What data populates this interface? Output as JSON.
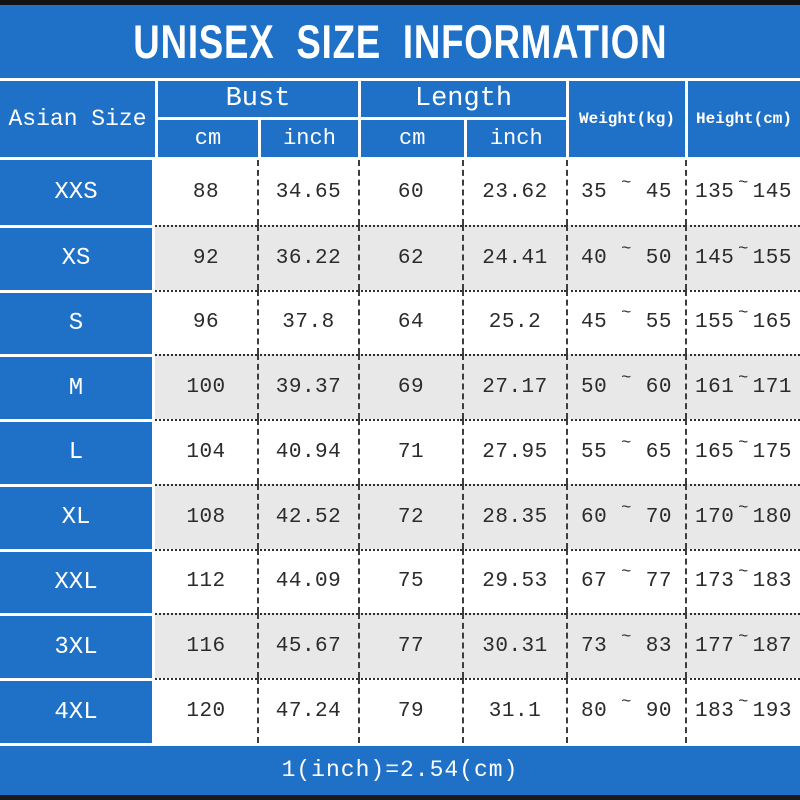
{
  "title": "UNISEX SIZE INFORMATION",
  "note": "1(inch)=2.54(cm)",
  "colors": {
    "accent_blue": "#1e71c6",
    "alt_row_gray": "#e8e8e8",
    "bar_black": "#121212"
  },
  "chart_data": {
    "type": "table",
    "title": "UNISEX SIZE INFORMATION",
    "header": {
      "size_col": "Asian Size",
      "groups": [
        {
          "label": "Bust",
          "sub": [
            "cm",
            "inch"
          ]
        },
        {
          "label": "Length",
          "sub": [
            "cm",
            "inch"
          ]
        }
      ],
      "weight_col": "Weight(kg)",
      "height_col": "Height(cm)"
    },
    "range_separator": "~",
    "columns": [
      "Asian Size",
      "Bust cm",
      "Bust inch",
      "Length cm",
      "Length inch",
      "Weight min (kg)",
      "Weight max (kg)",
      "Height min (cm)",
      "Height max (cm)"
    ],
    "rows": [
      [
        "XXS",
        "88",
        "34.65",
        "60",
        "23.62",
        "35",
        "45",
        "135",
        "145"
      ],
      [
        "XS",
        "92",
        "36.22",
        "62",
        "24.41",
        "40",
        "50",
        "145",
        "155"
      ],
      [
        "S",
        "96",
        "37.8",
        "64",
        "25.2",
        "45",
        "55",
        "155",
        "165"
      ],
      [
        "M",
        "100",
        "39.37",
        "69",
        "27.17",
        "50",
        "60",
        "161",
        "171"
      ],
      [
        "L",
        "104",
        "40.94",
        "71",
        "27.95",
        "55",
        "65",
        "165",
        "175"
      ],
      [
        "XL",
        "108",
        "42.52",
        "72",
        "28.35",
        "60",
        "70",
        "170",
        "180"
      ],
      [
        "XXL",
        "112",
        "44.09",
        "75",
        "29.53",
        "67",
        "77",
        "173",
        "183"
      ],
      [
        "3XL",
        "116",
        "45.67",
        "77",
        "30.31",
        "73",
        "83",
        "177",
        "187"
      ],
      [
        "4XL",
        "120",
        "47.24",
        "79",
        "31.1",
        "80",
        "90",
        "183",
        "193"
      ]
    ],
    "note": "1(inch)=2.54(cm)"
  }
}
